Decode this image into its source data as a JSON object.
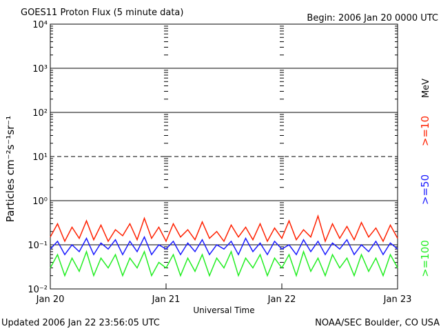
{
  "chart_data": {
    "type": "line",
    "title": "GOES11 Proton Flux (5 minute data)",
    "subtitle": "Begin: 2006 Jan 20 0000 UTC",
    "x_label": "Universal Time",
    "y_label": "Particles cm⁻²s⁻¹sr⁻¹",
    "units": "MeV",
    "footer_left": "Updated 2006 Jan 22 23:56:05 UTC",
    "footer_right": "NOAA/SEC Boulder, CO USA",
    "log_y": true,
    "grid": true,
    "xlim": [
      0,
      72
    ],
    "xticks": [
      {
        "value": 0,
        "label": "Jan 20"
      },
      {
        "value": 24,
        "label": "Jan 21"
      },
      {
        "value": 48,
        "label": "Jan 22"
      },
      {
        "value": 72,
        "label": "Jan 23"
      }
    ],
    "ylim": [
      0.01,
      10000
    ],
    "yticks": [
      {
        "value": 0.01,
        "label": "10⁻²"
      },
      {
        "value": 0.1,
        "label": "10⁻¹"
      },
      {
        "value": 1,
        "label": "10⁰"
      },
      {
        "value": 10,
        "label": "10¹"
      },
      {
        "value": 100,
        "label": "10²"
      },
      {
        "value": 1000,
        "label": "10³"
      },
      {
        "value": 10000,
        "label": "10⁴"
      }
    ],
    "x": [
      0,
      1.5,
      3,
      4.5,
      6,
      7.5,
      9,
      10.5,
      12,
      13.5,
      15,
      16.5,
      18,
      19.5,
      21,
      22.5,
      24,
      25.5,
      27,
      28.5,
      30,
      31.5,
      33,
      34.5,
      36,
      37.5,
      39,
      40.5,
      42,
      43.5,
      45,
      46.5,
      48,
      49.5,
      51,
      52.5,
      54,
      55.5,
      57,
      58.5,
      60,
      61.5,
      63,
      64.5,
      66,
      67.5,
      69,
      70.5,
      72
    ],
    "series": [
      {
        "name": ">=10",
        "color": "#ff2000",
        "values": [
          0.15,
          0.3,
          0.12,
          0.25,
          0.14,
          0.35,
          0.13,
          0.28,
          0.12,
          0.22,
          0.16,
          0.3,
          0.13,
          0.4,
          0.14,
          0.25,
          0.12,
          0.3,
          0.15,
          0.22,
          0.13,
          0.33,
          0.14,
          0.2,
          0.12,
          0.28,
          0.15,
          0.25,
          0.13,
          0.3,
          0.12,
          0.24,
          0.14,
          0.35,
          0.13,
          0.22,
          0.15,
          0.45,
          0.12,
          0.3,
          0.14,
          0.26,
          0.13,
          0.32,
          0.15,
          0.24,
          0.12,
          0.28,
          0.14
        ]
      },
      {
        "name": ">=50",
        "color": "#1a1aff",
        "values": [
          0.08,
          0.12,
          0.06,
          0.1,
          0.07,
          0.14,
          0.06,
          0.11,
          0.08,
          0.13,
          0.06,
          0.12,
          0.07,
          0.15,
          0.06,
          0.1,
          0.08,
          0.12,
          0.06,
          0.11,
          0.07,
          0.13,
          0.06,
          0.1,
          0.08,
          0.12,
          0.06,
          0.14,
          0.07,
          0.11,
          0.06,
          0.12,
          0.08,
          0.1,
          0.06,
          0.13,
          0.07,
          0.12,
          0.06,
          0.11,
          0.08,
          0.13,
          0.06,
          0.1,
          0.07,
          0.12,
          0.06,
          0.11,
          0.08
        ]
      },
      {
        "name": ">=100",
        "color": "#22ee22",
        "values": [
          0.03,
          0.06,
          0.02,
          0.05,
          0.025,
          0.07,
          0.02,
          0.05,
          0.03,
          0.06,
          0.02,
          0.05,
          0.03,
          0.07,
          0.02,
          0.04,
          0.03,
          0.06,
          0.02,
          0.05,
          0.025,
          0.06,
          0.02,
          0.05,
          0.03,
          0.07,
          0.02,
          0.05,
          0.03,
          0.06,
          0.02,
          0.05,
          0.03,
          0.06,
          0.02,
          0.07,
          0.025,
          0.05,
          0.02,
          0.06,
          0.03,
          0.05,
          0.02,
          0.06,
          0.025,
          0.05,
          0.02,
          0.06,
          0.03
        ]
      }
    ]
  }
}
